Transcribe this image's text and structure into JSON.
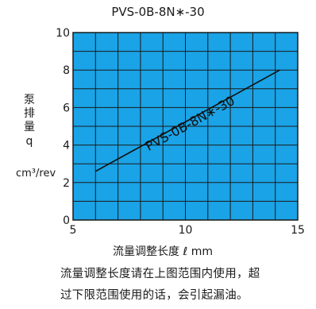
{
  "chart_data": {
    "type": "line",
    "title": "PVS-0B-8N∗-30",
    "xlabel": "流量调整长度 ℓ mm",
    "ylabel_chars": [
      "泵",
      "排",
      "量",
      "q"
    ],
    "ylabel_unit": "cm³/rev",
    "xlim": [
      5,
      15
    ],
    "ylim": [
      0,
      10
    ],
    "xticks": [
      5,
      10,
      15
    ],
    "yticks": [
      0,
      2,
      4,
      6,
      8,
      10
    ],
    "grid": true,
    "background_color": "#1aa3e6",
    "grid_color": "#1a1a1a",
    "series": [
      {
        "name": "PVS-0B-8N∗-30",
        "x": [
          6,
          14.2
        ],
        "y": [
          2.6,
          8.0
        ]
      }
    ]
  },
  "notes": [
    "流量调整长度请在上图范围内使用，超",
    "过下限范围使用的话，会引起漏油。"
  ]
}
